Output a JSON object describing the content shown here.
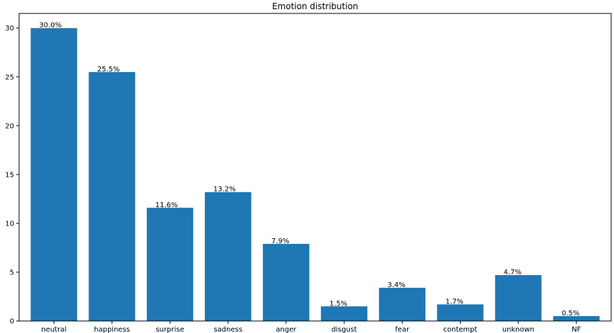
{
  "chart_data": {
    "type": "bar",
    "title": "Emotion distribution",
    "xlabel": "",
    "ylabel": "",
    "categories": [
      "neutral",
      "happiness",
      "surprise",
      "sadness",
      "anger",
      "disgust",
      "fear",
      "contempt",
      "unknown",
      "NF"
    ],
    "values": [
      30.0,
      25.5,
      11.6,
      13.2,
      7.9,
      1.5,
      3.4,
      1.7,
      4.7,
      0.5
    ],
    "data_labels": [
      "30.0%",
      "25.5%",
      "11.6%",
      "13.2%",
      "7.9%",
      "1.5%",
      "3.4%",
      "1.7%",
      "4.7%",
      "0.5%"
    ],
    "ylim": [
      0,
      31.5
    ],
    "yticks": [
      0,
      5,
      10,
      15,
      20,
      25,
      30
    ],
    "grid": false,
    "legend": "none",
    "bar_color": "#1f77b4"
  }
}
